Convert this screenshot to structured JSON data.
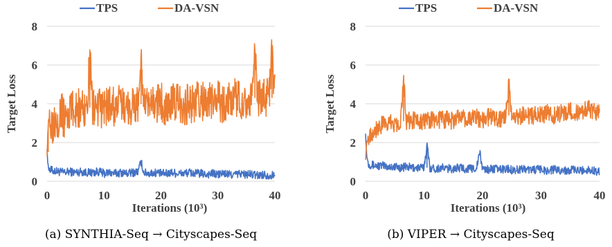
{
  "colors": {
    "tps": "#4472c4",
    "da_vsn": "#ed7d31",
    "grid": "#d9d9d9",
    "text": "#404040"
  },
  "chart_data": [
    {
      "type": "line",
      "caption": "(a) SYNTHIA-Seq → Cityscapes-Seq",
      "xlabel": "Iterations (10³)",
      "ylabel": "Target Loss",
      "xlim": [
        0,
        40
      ],
      "ylim": [
        0,
        8
      ],
      "xticks": [
        "0",
        "10",
        "20",
        "30",
        "40"
      ],
      "yticks": [
        "0",
        "2",
        "4",
        "6",
        "8"
      ],
      "grid": "horizontal",
      "legend_position": "top-center",
      "series": [
        {
          "name": "TPS",
          "color": "#4472c4",
          "x": [
            0,
            0.1,
            0.3,
            1,
            2,
            3,
            4,
            5,
            6,
            7,
            8,
            9,
            10,
            11,
            12,
            13,
            14,
            15,
            16,
            16.5,
            17,
            18,
            19,
            20,
            21,
            22,
            23,
            24,
            25,
            26,
            27,
            28,
            29,
            30,
            31,
            32,
            33,
            34,
            35,
            36,
            37,
            38,
            39,
            40
          ],
          "values": [
            1.7,
            1.0,
            0.6,
            0.55,
            0.5,
            0.45,
            0.5,
            0.45,
            0.5,
            0.45,
            0.45,
            0.5,
            0.4,
            0.45,
            0.4,
            0.45,
            0.4,
            0.45,
            0.5,
            1.0,
            0.45,
            0.4,
            0.45,
            0.4,
            0.4,
            0.45,
            0.4,
            0.4,
            0.45,
            0.4,
            0.4,
            0.35,
            0.4,
            0.35,
            0.4,
            0.35,
            0.35,
            0.4,
            0.35,
            0.35,
            0.3,
            0.35,
            0.3,
            0.3
          ]
        },
        {
          "name": "DA-VSN",
          "color": "#ed7d31",
          "x": [
            0,
            0.2,
            0.5,
            1,
            1.5,
            2,
            2.5,
            3,
            3.5,
            4,
            5,
            6,
            7,
            7.5,
            8,
            9,
            10,
            11,
            12,
            13,
            14,
            15,
            16,
            16.5,
            17,
            18,
            19,
            20,
            21,
            22,
            23,
            24,
            25,
            26,
            27,
            28,
            29,
            30,
            31,
            32,
            33,
            34,
            35,
            36,
            36.5,
            37,
            38,
            39,
            39.5,
            40
          ],
          "values": [
            1.5,
            2.9,
            3.2,
            3.0,
            3.4,
            3.3,
            3.6,
            3.2,
            3.5,
            3.6,
            3.7,
            3.8,
            3.8,
            6.2,
            3.9,
            3.7,
            3.8,
            3.9,
            3.8,
            4.0,
            3.8,
            3.9,
            4.0,
            6.3,
            3.9,
            3.8,
            4.0,
            4.1,
            3.9,
            4.0,
            4.1,
            3.9,
            4.0,
            4.1,
            4.2,
            4.0,
            4.1,
            4.2,
            4.0,
            4.2,
            4.3,
            4.2,
            4.2,
            4.3,
            6.4,
            4.2,
            4.4,
            4.3,
            6.5,
            4.5
          ]
        }
      ]
    },
    {
      "type": "line",
      "caption": "(b) VIPER → Cityscapes-Seq",
      "xlabel": "Iterations (10³)",
      "ylabel": "Target Loss",
      "xlim": [
        0,
        40
      ],
      "ylim": [
        0,
        8
      ],
      "xticks": [
        "0",
        "10",
        "20",
        "30",
        "40"
      ],
      "yticks": [
        "0",
        "2",
        "4",
        "6",
        "8"
      ],
      "grid": "horizontal",
      "legend_position": "top-center",
      "series": [
        {
          "name": "TPS",
          "color": "#4472c4",
          "x": [
            0,
            0.2,
            0.5,
            1,
            2,
            3,
            4,
            5,
            6,
            7,
            8,
            9,
            10,
            10.5,
            11,
            12,
            13,
            14,
            15,
            16,
            17,
            18,
            19,
            19.5,
            20,
            21,
            22,
            23,
            24,
            25,
            26,
            27,
            28,
            29,
            30,
            31,
            32,
            33,
            34,
            35,
            36,
            37,
            38,
            39,
            40
          ],
          "values": [
            2.5,
            1.3,
            0.9,
            0.85,
            0.8,
            0.8,
            0.75,
            0.75,
            0.7,
            0.75,
            0.7,
            0.7,
            0.7,
            1.9,
            0.7,
            0.65,
            0.7,
            0.65,
            0.65,
            0.7,
            0.65,
            0.65,
            0.7,
            1.5,
            0.65,
            0.6,
            0.65,
            0.6,
            0.65,
            0.6,
            0.6,
            0.65,
            0.6,
            0.6,
            0.6,
            0.55,
            0.6,
            0.6,
            0.55,
            0.6,
            0.55,
            0.55,
            0.6,
            0.55,
            0.5
          ]
        },
        {
          "name": "DA-VSN",
          "color": "#ed7d31",
          "x": [
            0,
            0.2,
            0.5,
            1,
            1.5,
            2,
            3,
            4,
            5,
            6,
            6.5,
            7,
            8,
            9,
            10,
            11,
            12,
            13,
            14,
            15,
            16,
            17,
            18,
            19,
            20,
            21,
            22,
            23,
            24,
            24.5,
            25,
            26,
            27,
            28,
            29,
            30,
            31,
            32,
            33,
            34,
            35,
            36,
            37,
            38,
            39,
            40
          ],
          "values": [
            1.2,
            2.0,
            2.3,
            2.5,
            2.6,
            2.8,
            2.9,
            3.0,
            3.0,
            3.1,
            5.2,
            3.1,
            3.1,
            3.2,
            3.1,
            3.2,
            3.1,
            3.2,
            3.2,
            3.1,
            3.3,
            3.2,
            3.2,
            3.3,
            3.2,
            3.3,
            3.3,
            3.2,
            3.4,
            5.0,
            3.3,
            3.3,
            3.4,
            3.3,
            3.4,
            3.4,
            3.5,
            3.4,
            3.5,
            3.5,
            3.6,
            3.5,
            3.6,
            3.7,
            3.6,
            3.6
          ]
        }
      ]
    }
  ]
}
